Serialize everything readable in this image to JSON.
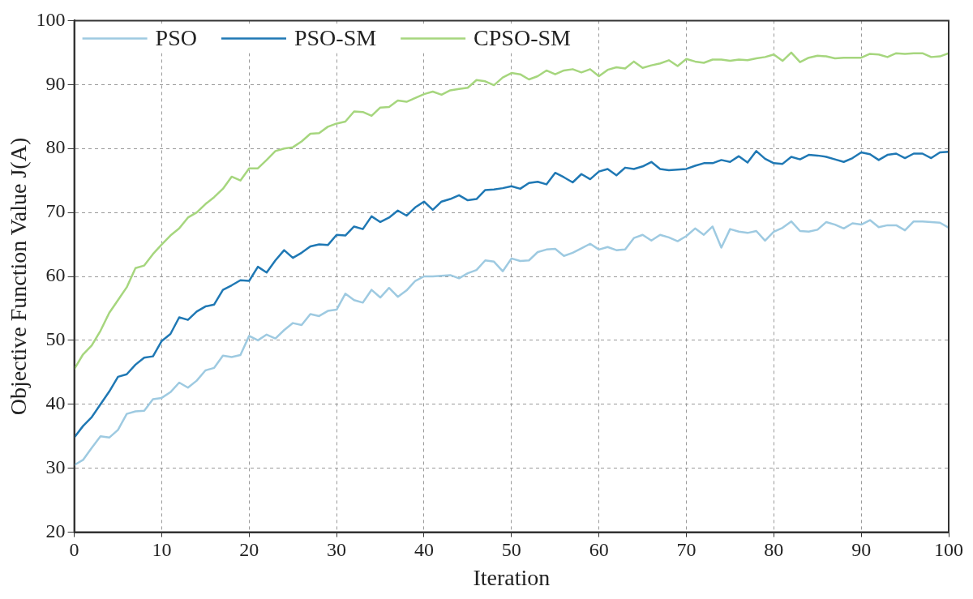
{
  "chart_data": {
    "type": "line",
    "xlabel": "Iteration",
    "ylabel": "Objective Function Value J(A)",
    "x": [
      0,
      1,
      2,
      3,
      4,
      5,
      6,
      7,
      8,
      9,
      10,
      11,
      12,
      13,
      14,
      15,
      16,
      17,
      18,
      19,
      20,
      21,
      22,
      23,
      24,
      25,
      26,
      27,
      28,
      29,
      30,
      31,
      32,
      33,
      34,
      35,
      36,
      37,
      38,
      39,
      40,
      41,
      42,
      43,
      44,
      45,
      46,
      47,
      48,
      49,
      50,
      51,
      52,
      53,
      54,
      55,
      56,
      57,
      58,
      59,
      60,
      61,
      62,
      63,
      64,
      65,
      66,
      67,
      68,
      69,
      70,
      71,
      72,
      73,
      74,
      75,
      76,
      77,
      78,
      79,
      80,
      81,
      82,
      83,
      84,
      85,
      86,
      87,
      88,
      89,
      90,
      91,
      92,
      93,
      94,
      95,
      96,
      97,
      98,
      99,
      100
    ],
    "series": [
      {
        "name": "PSO",
        "color": "#9ecae1",
        "values": [
          30.5,
          31.3,
          33.2,
          35,
          34.8,
          36,
          38.5,
          38.9,
          39,
          40.8,
          41,
          41.9,
          43.4,
          42.6,
          43.7,
          45.3,
          45.7,
          47.6,
          47.4,
          47.7,
          50.7,
          50,
          50.9,
          50.3,
          51.6,
          52.7,
          52.4,
          54.1,
          53.8,
          54.6,
          54.8,
          57.3,
          56.3,
          55.9,
          57.9,
          56.7,
          58.2,
          56.8,
          57.8,
          59.3,
          60,
          60,
          60.1,
          60.2,
          59.7,
          60.5,
          61,
          62.5,
          62.3,
          60.8,
          62.8,
          62.4,
          62.5,
          63.8,
          64.2,
          64.3,
          63.2,
          63.7,
          64.4,
          65.1,
          64.2,
          64.6,
          64.1,
          64.2,
          66,
          66.5,
          65.6,
          66.5,
          66.1,
          65.5,
          66.3,
          67.5,
          66.5,
          67.8,
          64.5,
          67.4,
          67,
          66.8,
          67.1,
          65.6,
          67,
          67.6,
          68.6,
          67.1,
          67,
          67.3,
          68.5,
          68.1,
          67.5,
          68.3,
          68.1,
          68.8,
          67.7,
          68,
          68,
          67.2,
          68.6,
          68.6,
          68.5,
          68.4,
          67.6
        ]
      },
      {
        "name": "PSO-SM",
        "color": "#1f78b4",
        "values": [
          34.8,
          36.6,
          38,
          40,
          42,
          44.3,
          44.7,
          46.2,
          47.3,
          47.5,
          49.9,
          51,
          53.6,
          53.2,
          54.5,
          55.3,
          55.6,
          57.9,
          58.6,
          59.4,
          59.3,
          61.5,
          60.6,
          62.5,
          64.1,
          62.9,
          63.7,
          64.7,
          65,
          64.9,
          66.5,
          66.4,
          67.8,
          67.4,
          69.4,
          68.5,
          69.2,
          70.3,
          69.5,
          70.8,
          71.7,
          70.4,
          71.7,
          72.1,
          72.7,
          71.9,
          72.1,
          73.5,
          73.6,
          73.8,
          74.1,
          73.7,
          74.6,
          74.8,
          74.4,
          76.2,
          75.5,
          74.7,
          76,
          75.2,
          76.4,
          76.8,
          75.8,
          77,
          76.8,
          77.2,
          77.9,
          76.8,
          76.6,
          76.7,
          76.8,
          77.3,
          77.7,
          77.7,
          78.2,
          77.9,
          78.8,
          77.8,
          79.6,
          78.4,
          77.7,
          77.6,
          78.7,
          78.3,
          79,
          78.9,
          78.7,
          78.3,
          77.9,
          78.5,
          79.4,
          79.1,
          78.2,
          79,
          79.2,
          78.5,
          79.2,
          79.2,
          78.5,
          79.4,
          79.5
        ]
      },
      {
        "name": "CPSO-SM",
        "color": "#a6d67e",
        "values": [
          45.5,
          47.8,
          49.2,
          51.5,
          54.3,
          56.3,
          58.3,
          61.3,
          61.7,
          63.5,
          65,
          66.4,
          67.5,
          69.2,
          70,
          71.3,
          72.4,
          73.7,
          75.6,
          75,
          76.9,
          76.9,
          78.2,
          79.6,
          80,
          80.2,
          81.1,
          82.3,
          82.4,
          83.4,
          83.9,
          84.2,
          85.8,
          85.7,
          85.1,
          86.4,
          86.5,
          87.5,
          87.3,
          87.9,
          88.5,
          88.9,
          88.4,
          89.1,
          89.3,
          89.5,
          90.7,
          90.5,
          89.9,
          91.1,
          91.8,
          91.6,
          90.8,
          91.3,
          92.2,
          91.6,
          92.2,
          92.4,
          91.9,
          92.4,
          91.3,
          92.3,
          92.7,
          92.5,
          93.6,
          92.6,
          93,
          93.3,
          93.8,
          92.9,
          94,
          93.6,
          93.4,
          93.9,
          93.9,
          93.7,
          93.9,
          93.8,
          94.1,
          94.3,
          94.7,
          93.7,
          95,
          93.5,
          94.2,
          94.5,
          94.4,
          94.1,
          94.2,
          94.2,
          94.2,
          94.8,
          94.7,
          94.3,
          94.9,
          94.8,
          94.9,
          94.9,
          94.3,
          94.4,
          94.9
        ]
      }
    ],
    "xlim": [
      0,
      100
    ],
    "xticks": [
      0,
      10,
      20,
      30,
      40,
      50,
      60,
      70,
      80,
      90,
      100
    ],
    "ylim": [
      20,
      100
    ],
    "yticks": [
      20,
      30,
      40,
      50,
      60,
      70,
      80,
      90,
      100
    ],
    "grid": true,
    "legend": "top left",
    "marker": "none",
    "line_style": "solid"
  }
}
